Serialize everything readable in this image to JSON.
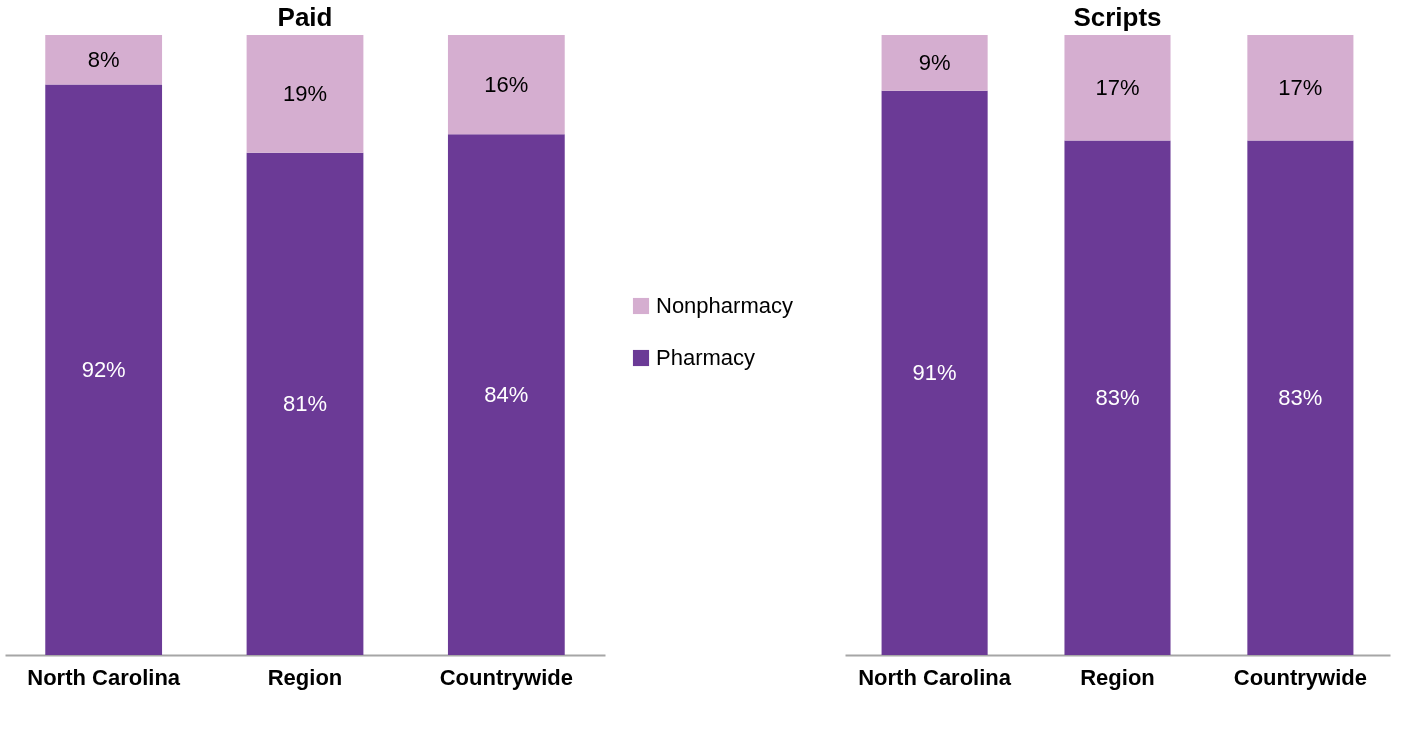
{
  "chart_data": [
    {
      "type": "bar",
      "title": "Paid",
      "categories": [
        "North Carolina",
        "Region",
        "Countrywide"
      ],
      "stacked": true,
      "ylim": [
        0,
        100
      ],
      "legend": "right",
      "series": [
        {
          "name": "Pharmacy",
          "color": "#6b3a96",
          "values": [
            92,
            81,
            84
          ],
          "value_labels": [
            "92%",
            "81%",
            "84%"
          ]
        },
        {
          "name": "Nonpharmacy",
          "color": "#d5aed0",
          "values": [
            8,
            19,
            16
          ],
          "value_labels": [
            "8%",
            "19%",
            "16%"
          ]
        }
      ]
    },
    {
      "type": "bar",
      "title": "Scripts",
      "categories": [
        "North Carolina",
        "Region",
        "Countrywide"
      ],
      "stacked": true,
      "ylim": [
        0,
        100
      ],
      "legend": false,
      "series": [
        {
          "name": "Pharmacy",
          "color": "#6b3a96",
          "values": [
            91,
            83,
            83
          ],
          "value_labels": [
            "91%",
            "83%",
            "83%"
          ]
        },
        {
          "name": "Nonpharmacy",
          "color": "#d5aed0",
          "values": [
            9,
            17,
            17
          ],
          "value_labels": [
            "9%",
            "17%",
            "17%"
          ]
        }
      ]
    }
  ]
}
